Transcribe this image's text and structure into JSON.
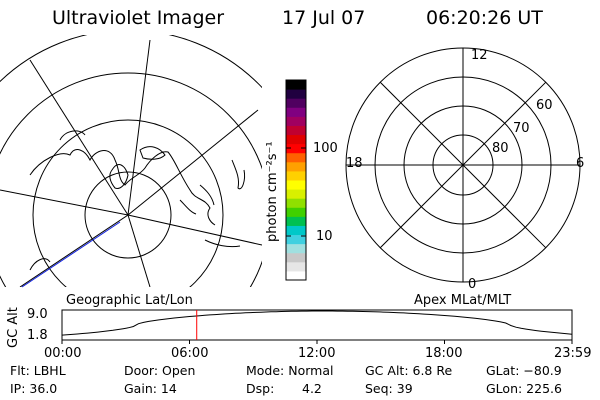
{
  "header": {
    "instrument": "Ultraviolet Imager",
    "date": "17 Jul 07",
    "time": "06:20:26 UT"
  },
  "colorbar": {
    "unit_label": "photon cm⁻²s⁻¹",
    "tick_100": "100",
    "tick_10": "10",
    "colors": [
      "#ffffff",
      "#e6e6e6",
      "#c8c8c8",
      "#a0e0e0",
      "#40d0e0",
      "#00c8c8",
      "#00c050",
      "#40d000",
      "#90e000",
      "#d8f000",
      "#ffff00",
      "#ffd000",
      "#ffa000",
      "#ff6000",
      "#ff0000",
      "#e00000",
      "#c00030",
      "#a00060",
      "#800080",
      "#500060",
      "#200040",
      "#000000"
    ]
  },
  "left_map": {
    "projection_label": "Geographic Lat/Lon"
  },
  "right_map": {
    "projection_label": "Apex MLat/MLT",
    "mlt_labels": {
      "top": "12",
      "bottom": "0",
      "left": "18",
      "right": "6"
    },
    "lat_labels": [
      "60",
      "70",
      "80"
    ]
  },
  "altitude_plot": {
    "ylabel": "GC Alt",
    "y_max": "9.0",
    "y_min": "1.8",
    "x_ticks": [
      "00:00",
      "06:00",
      "12:00",
      "18:00",
      "23:59"
    ],
    "current_time_hours": 6.34,
    "marker_color": "#ff0000"
  },
  "info": {
    "filter": "Flt: LBHL",
    "door": "Door: Open",
    "mode": "Mode: Normal",
    "gc_alt": "GC Alt: 6.8 Re",
    "glat": "GLat: −80.9",
    "ip": "IP: 36.0",
    "gain": "Gain: 14",
    "dsp_label": "Dsp:",
    "dsp_value": "4.2",
    "seq": "Seq: 39",
    "glon": "GLon: 225.6"
  }
}
